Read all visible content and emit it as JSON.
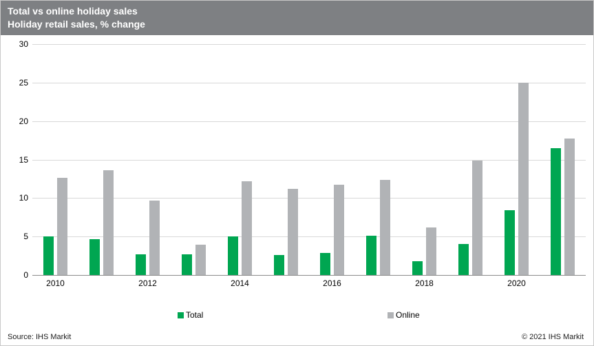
{
  "header": {
    "title": "Total vs online holiday sales",
    "subtitle": "Holiday retail sales, % change"
  },
  "chart_data": {
    "type": "bar",
    "title": "Total vs online holiday sales",
    "subtitle": "Holiday retail sales, % change",
    "categories": [
      2010,
      2011,
      2012,
      2013,
      2014,
      2015,
      2016,
      2017,
      2018,
      2019,
      2020,
      2021
    ],
    "x_axis_labels_shown": [
      "2010",
      "2012",
      "2014",
      "2016",
      "2018",
      "2020"
    ],
    "series": [
      {
        "name": "Total",
        "color": "#00a651",
        "values": [
          5.0,
          4.7,
          2.7,
          2.7,
          5.0,
          2.6,
          2.9,
          5.1,
          1.8,
          4.0,
          8.4,
          16.5
        ]
      },
      {
        "name": "Online",
        "color": "#b1b3b6",
        "values": [
          12.6,
          13.6,
          9.7,
          3.9,
          12.2,
          11.2,
          11.7,
          12.4,
          6.2,
          14.9,
          25.0,
          17.7
        ]
      }
    ],
    "ylabel": "",
    "xlabel": "",
    "ylim": [
      0,
      30
    ],
    "y_ticks": [
      0,
      5,
      10,
      15,
      20,
      25,
      30
    ],
    "grid": true,
    "legend_position": "bottom"
  },
  "colors": {
    "header_bg": "#7e8083",
    "total_bar": "#00a651",
    "online_bar": "#b1b3b6",
    "gridline": "#d8d8d8",
    "baseline": "#8c8c8c"
  },
  "footer": {
    "source": "Source:  IHS Markit",
    "copyright": "© 2021  IHS Markit"
  }
}
